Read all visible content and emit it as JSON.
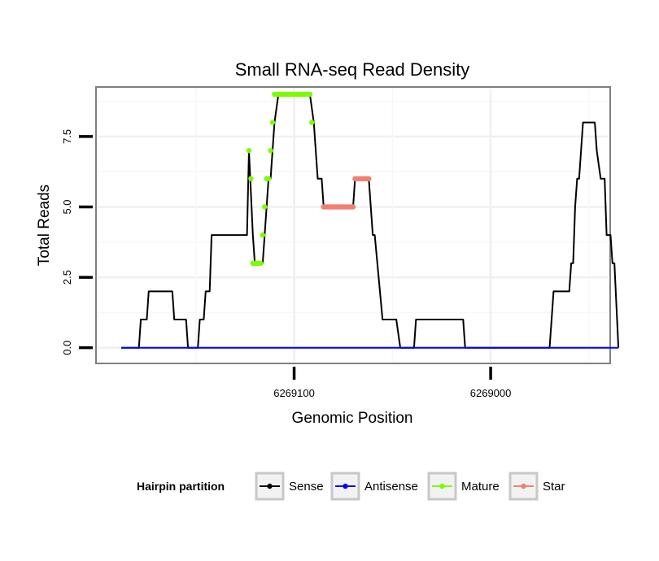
{
  "chart_data": {
    "type": "line",
    "title": "Small RNA-seq Read Density",
    "xlabel": "Genomic Position",
    "ylabel": "Total Reads",
    "x_reversed": true,
    "xlim": [
      6268940,
      6269200
    ],
    "ylim": [
      -0.5,
      9.2
    ],
    "x_ticks": [
      6269100,
      6269000
    ],
    "x_tick_labels": [
      "6269100",
      "6269000"
    ],
    "y_ticks": [
      0,
      2.5,
      5,
      7.5
    ],
    "y_tick_labels": [
      "0.0",
      "2.5",
      "5.0",
      "7.5"
    ],
    "grid": true,
    "legend_position": "bottom",
    "legend_title": "Hairpin partition",
    "series": [
      {
        "name": "Sense",
        "color": "#000000",
        "points": [
          [
            6269188,
            0
          ],
          [
            6269179,
            0
          ],
          [
            6269178,
            1
          ],
          [
            6269175,
            1
          ],
          [
            6269174,
            2
          ],
          [
            6269162,
            2
          ],
          [
            6269161,
            1
          ],
          [
            6269155,
            1
          ],
          [
            6269154,
            0
          ],
          [
            6269149,
            0
          ],
          [
            6269148,
            1
          ],
          [
            6269146,
            1
          ],
          [
            6269145,
            2
          ],
          [
            6269143,
            2
          ],
          [
            6269142,
            4
          ],
          [
            6269124,
            4
          ],
          [
            6269123,
            7
          ],
          [
            6269121,
            4
          ],
          [
            6269120,
            3
          ],
          [
            6269116,
            3
          ],
          [
            6269115,
            4
          ],
          [
            6269114,
            5
          ],
          [
            6269113,
            6
          ],
          [
            6269112,
            6
          ],
          [
            6269111,
            7
          ],
          [
            6269110,
            8
          ],
          [
            6269108,
            9
          ],
          [
            6269092,
            9
          ],
          [
            6269090,
            8
          ],
          [
            6269088,
            6
          ],
          [
            6269086,
            6
          ],
          [
            6269085,
            5
          ],
          [
            6269070,
            5
          ],
          [
            6269069,
            6
          ],
          [
            6269062,
            6
          ],
          [
            6269060,
            4
          ],
          [
            6269059,
            4
          ],
          [
            6269055,
            1
          ],
          [
            6269048,
            1
          ],
          [
            6269046,
            0
          ],
          [
            6269039,
            0
          ],
          [
            6269038,
            1
          ],
          [
            6269014,
            1
          ],
          [
            6269013,
            0
          ],
          [
            6268970,
            0
          ],
          [
            6268969,
            1
          ],
          [
            6268968,
            2
          ],
          [
            6268960,
            2
          ],
          [
            6268959,
            3
          ],
          [
            6268958,
            3
          ],
          [
            6268957,
            5
          ],
          [
            6268956,
            6
          ],
          [
            6268955,
            6
          ],
          [
            6268954,
            7
          ],
          [
            6268953,
            8
          ],
          [
            6268947,
            8
          ],
          [
            6268946,
            7
          ],
          [
            6268944,
            6
          ],
          [
            6268942,
            6
          ],
          [
            6268941,
            4
          ],
          [
            6268939,
            4
          ],
          [
            6268938,
            3
          ],
          [
            6268937,
            3
          ],
          [
            6268935,
            0
          ]
        ]
      },
      {
        "name": "Antisense",
        "color": "#0000ff",
        "points": [
          [
            6269188,
            0
          ],
          [
            6268935,
            0
          ]
        ]
      },
      {
        "name": "Mature",
        "color": "#7cfc00",
        "points": [
          [
            6269123,
            7
          ],
          [
            6269122,
            6
          ],
          [
            6269121,
            3
          ],
          [
            6269120,
            3
          ],
          [
            6269119,
            3
          ],
          [
            6269118,
            3
          ],
          [
            6269117,
            3
          ],
          [
            6269116,
            4
          ],
          [
            6269115,
            5
          ],
          [
            6269114,
            6
          ],
          [
            6269113,
            6
          ],
          [
            6269112,
            7
          ],
          [
            6269111,
            8
          ],
          [
            6269110,
            9
          ],
          [
            6269109,
            9
          ],
          [
            6269108,
            9
          ],
          [
            6269107,
            9
          ],
          [
            6269106,
            9
          ],
          [
            6269105,
            9
          ],
          [
            6269104,
            9
          ],
          [
            6269103,
            9
          ],
          [
            6269102,
            9
          ],
          [
            6269101,
            9
          ],
          [
            6269100,
            9
          ],
          [
            6269099,
            9
          ],
          [
            6269098,
            9
          ],
          [
            6269097,
            9
          ],
          [
            6269096,
            9
          ],
          [
            6269095,
            9
          ],
          [
            6269094,
            9
          ],
          [
            6269093,
            9
          ],
          [
            6269092,
            9
          ],
          [
            6269091,
            8
          ]
        ]
      },
      {
        "name": "Star",
        "color": "#f08070",
        "points": [
          [
            6269085,
            5
          ],
          [
            6269084,
            5
          ],
          [
            6269083,
            5
          ],
          [
            6269082,
            5
          ],
          [
            6269081,
            5
          ],
          [
            6269080,
            5
          ],
          [
            6269079,
            5
          ],
          [
            6269078,
            5
          ],
          [
            6269077,
            5
          ],
          [
            6269076,
            5
          ],
          [
            6269075,
            5
          ],
          [
            6269074,
            5
          ],
          [
            6269073,
            5
          ],
          [
            6269072,
            5
          ],
          [
            6269071,
            5
          ],
          [
            6269070,
            5
          ],
          [
            6269069,
            6
          ],
          [
            6269068,
            6
          ],
          [
            6269067,
            6
          ],
          [
            6269066,
            6
          ],
          [
            6269065,
            6
          ],
          [
            6269064,
            6
          ],
          [
            6269063,
            6
          ],
          [
            6269062,
            6
          ]
        ]
      }
    ]
  }
}
